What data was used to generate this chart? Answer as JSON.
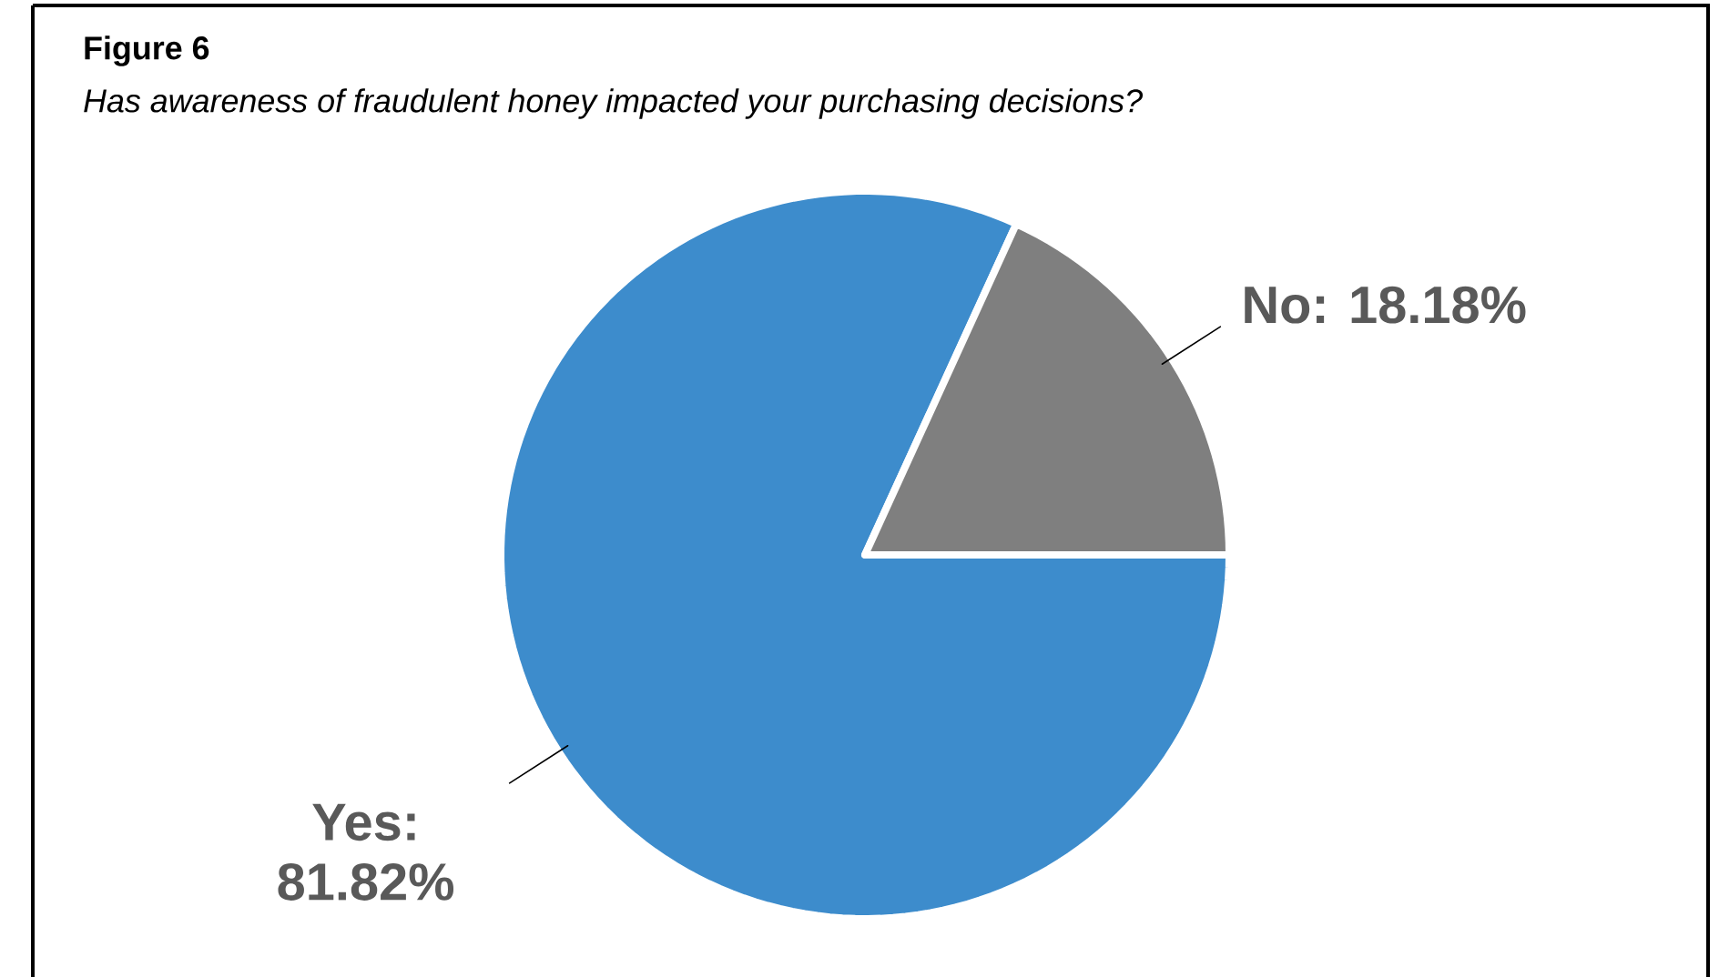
{
  "chart_data": {
    "type": "pie",
    "title": "Figure 6",
    "subtitle": "Has awareness of fraudulent honey impacted your purchasing decisions?",
    "categories": [
      null,
      null
    ],
    "values": [
      81.82,
      18.18
    ],
    "colors": [
      "#3d8ccc",
      "#7f7f7f"
    ],
    "value_labels": [
      "Yes: 81.82%",
      "No: 18.18%"
    ]
  }
}
